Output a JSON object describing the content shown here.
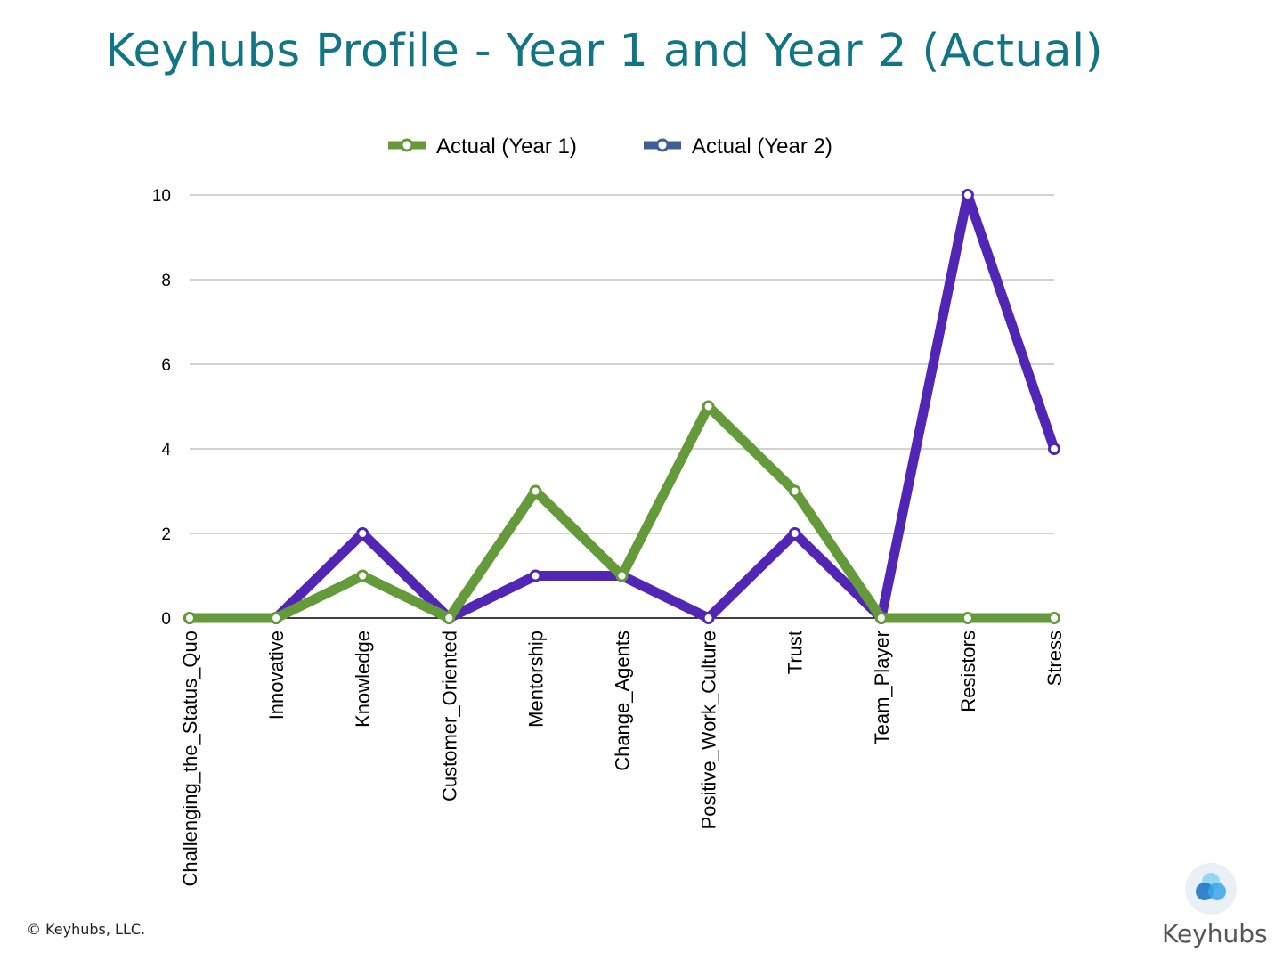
{
  "slide": {
    "title": "Keyhubs Profile - Year 1 and Year 2 (Actual)",
    "copyright": "© Keyhubs, LLC.",
    "logo_text": "Keyhubs"
  },
  "chart_data": {
    "type": "line",
    "title": "",
    "xlabel": "",
    "ylabel": "",
    "categories": [
      "Challenging_the_Status_Quo",
      "Innovative",
      "Knowledge",
      "Customer_Oriented",
      "Mentorship",
      "Change_Agents",
      "Positive_Work_Culture",
      "Trust",
      "Team_Player",
      "Resistors",
      "Stress"
    ],
    "series": [
      {
        "name": "Actual (Year 2)",
        "color": "#5126b5",
        "legend_color": "#3f5f99",
        "values": [
          0,
          0,
          2,
          0,
          1,
          1,
          0,
          2,
          0,
          10,
          4
        ]
      },
      {
        "name": "Actual (Year 1)",
        "color": "#659a3a",
        "legend_color": "#659a3a",
        "values": [
          0,
          0,
          1,
          0,
          3,
          1,
          5,
          3,
          0,
          0,
          0
        ]
      }
    ],
    "ylim": [
      0,
      10
    ],
    "yticks": [
      0,
      2,
      4,
      6,
      8,
      10
    ],
    "grid": true,
    "legend_order": [
      "Actual (Year 1)",
      "Actual (Year 2)"
    ],
    "legend_position": "top-center"
  }
}
